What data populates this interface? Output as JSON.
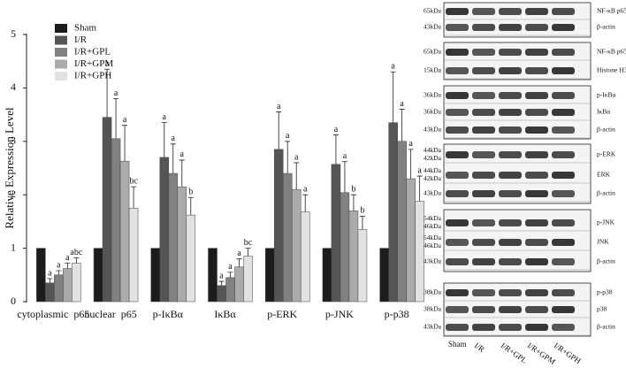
{
  "chart_data": {
    "type": "bar",
    "y_label": "Relative Expression Level",
    "categories": [
      "cytoplasmic  p65",
      "nuclear  p65",
      "p-IκBα",
      "IκBα",
      "p-ERK",
      "p-JNK",
      "p-p38"
    ],
    "series": [
      {
        "name": "Sham",
        "color": "#1c1c1c",
        "values": [
          1,
          1,
          1,
          1,
          1,
          1,
          1
        ]
      },
      {
        "name": "I/R",
        "color": "#555555",
        "values": [
          0.35,
          3.45,
          2.7,
          0.3,
          2.85,
          2.57,
          3.35
        ],
        "errors": [
          0.08,
          0.9,
          0.65,
          0.08,
          0.7,
          0.55,
          0.95
        ],
        "letters": [
          "a",
          "a",
          "a",
          "a",
          "a",
          "a",
          "a"
        ]
      },
      {
        "name": "I/R+GPL",
        "color": "#818181",
        "values": [
          0.5,
          3.05,
          2.4,
          0.45,
          2.4,
          2.04,
          3.0
        ],
        "errors": [
          0.08,
          0.75,
          0.55,
          0.1,
          0.6,
          0.58,
          0.6
        ],
        "letters": [
          "a",
          "a",
          "a",
          "a",
          "a",
          "a",
          "a"
        ]
      },
      {
        "name": "I/R+GPM",
        "color": "#ababab",
        "values": [
          0.62,
          2.63,
          2.15,
          0.65,
          2.1,
          1.7,
          2.3
        ],
        "errors": [
          0.1,
          0.67,
          0.5,
          0.15,
          0.5,
          0.3,
          0.55
        ],
        "letters": [
          "a",
          "a",
          "a",
          "a",
          "a",
          "b",
          "a"
        ]
      },
      {
        "name": "I/R+GPH",
        "color": "#e2e2e2",
        "values": [
          0.72,
          1.75,
          1.62,
          0.85,
          1.68,
          1.35,
          1.88
        ],
        "errors": [
          0.1,
          0.4,
          0.33,
          0.15,
          0.32,
          0.25,
          0.47
        ],
        "letters": [
          "abc",
          "bc",
          "b",
          "bc",
          "a",
          "b",
          "a"
        ]
      }
    ],
    "ylim": [
      0,
      5
    ],
    "yticks": [
      0,
      1,
      2,
      3,
      4,
      5
    ],
    "legend": "top-left"
  },
  "blot": {
    "groups": [
      {
        "rows": [
          {
            "kda": [
              "65kDa"
            ],
            "name": "NF-κB p65"
          },
          {
            "kda": [
              "43kDa"
            ],
            "name": "β-actin"
          }
        ]
      },
      {
        "rows": [
          {
            "kda": [
              "65kDa"
            ],
            "name": "NF-κB p65"
          },
          {
            "kda": [
              "15kDa"
            ],
            "name": "Histone H3"
          }
        ]
      },
      {
        "rows": [
          {
            "kda": [
              "36kDa"
            ],
            "name": "p-IκBα"
          },
          {
            "kda": [
              "36kDa"
            ],
            "name": "IκBα"
          },
          {
            "kda": [
              "43kDa"
            ],
            "name": "β-actin"
          }
        ]
      },
      {
        "rows": [
          {
            "kda": [
              "44kDa",
              "42kDa"
            ],
            "name": "p-ERK"
          },
          {
            "kda": [
              "44kDa",
              "42kDa"
            ],
            "name": "ERK"
          },
          {
            "kda": [
              "43kDa"
            ],
            "name": "β-actin"
          }
        ]
      },
      {
        "rows": [
          {
            "kda": [
              "54kDa",
              "46kDa"
            ],
            "name": "p-JNK"
          },
          {
            "kda": [
              "54kDa",
              "46kDa"
            ],
            "name": "JNK"
          },
          {
            "kda": [
              "43kDa"
            ],
            "name": "β-actin"
          }
        ]
      },
      {
        "rows": [
          {
            "kda": [
              "38kDa"
            ],
            "name": "p-p38"
          },
          {
            "kda": [
              "38kDa"
            ],
            "name": "p38"
          },
          {
            "kda": [
              "43kDa"
            ],
            "name": "β-actin"
          }
        ]
      }
    ],
    "lanes": [
      "Sham",
      "I/R",
      "I/R+GPL",
      "I/R+GPM",
      "I/R+GPH"
    ]
  }
}
